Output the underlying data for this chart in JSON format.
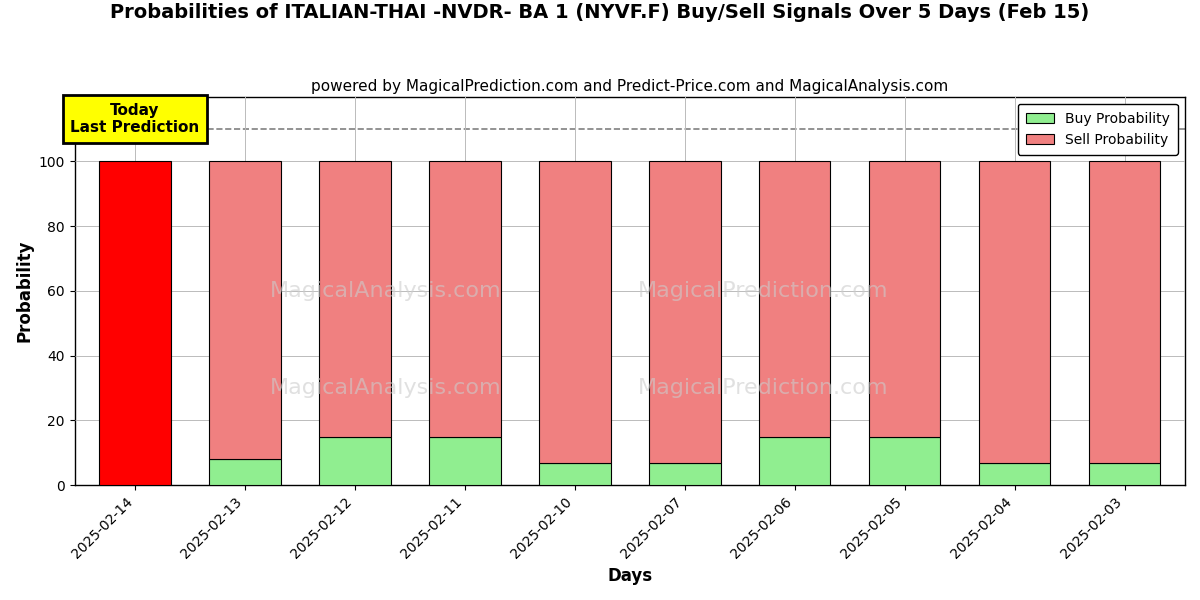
{
  "title": "Probabilities of ITALIAN-THAI -NVDR- BA 1 (NYVF.F) Buy/Sell Signals Over 5 Days (Feb 15)",
  "subtitle": "powered by MagicalPrediction.com and Predict-Price.com and MagicalAnalysis.com",
  "xlabel": "Days",
  "ylabel": "Probability",
  "categories": [
    "2025-02-14",
    "2025-02-13",
    "2025-02-12",
    "2025-02-11",
    "2025-02-10",
    "2025-02-07",
    "2025-02-06",
    "2025-02-05",
    "2025-02-04",
    "2025-02-03"
  ],
  "buy_probs": [
    0,
    8,
    15,
    15,
    7,
    7,
    15,
    15,
    7,
    7
  ],
  "sell_probs": [
    100,
    92,
    85,
    85,
    93,
    93,
    85,
    85,
    93,
    93
  ],
  "today_bar_color": "#FF0000",
  "buy_color": "#90EE90",
  "sell_color": "#F08080",
  "today_label_bg": "#FFFF00",
  "today_label_text": "Today\nLast Prediction",
  "watermark1": "MagicalAnalysis.com",
  "watermark2": "MagicalPrediction.com",
  "dashed_line_y": 110,
  "ylim": [
    0,
    120
  ],
  "yticks": [
    0,
    20,
    40,
    60,
    80,
    100
  ],
  "grid_color": "#BBBBBB",
  "bar_width": 0.65,
  "title_fontsize": 14,
  "subtitle_fontsize": 11,
  "label_fontsize": 12,
  "bg_color": "#FFFFFF",
  "fig_bg_color": "#FFFFFF"
}
